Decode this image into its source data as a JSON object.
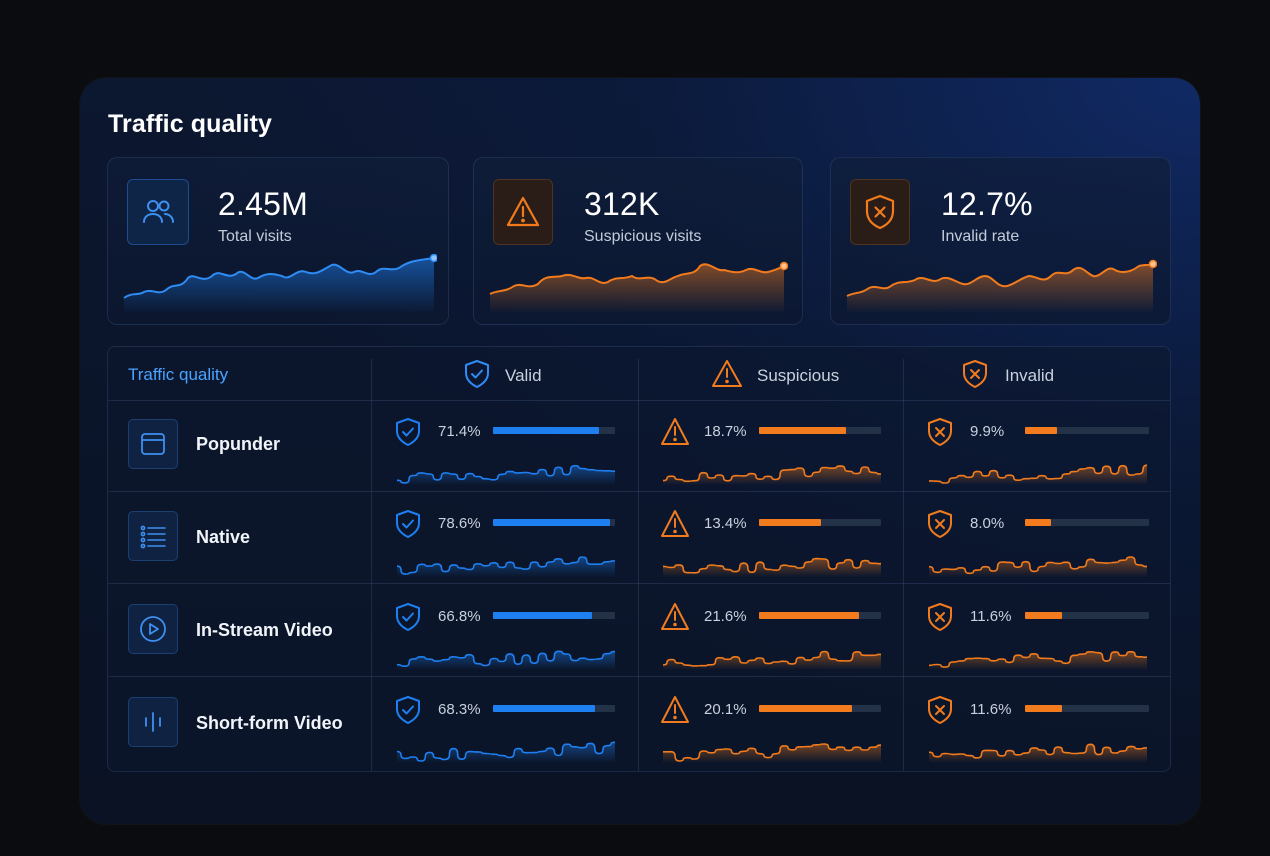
{
  "title": "Traffic quality",
  "colors": {
    "blue": "#1e7ff0",
    "orange": "#f17b1d",
    "header_blue": "#4aa3ff"
  },
  "kpis": [
    {
      "value": "2.45M",
      "label": "Total visits",
      "icon": "users-icon",
      "color": "blue"
    },
    {
      "value": "312K",
      "label": "Suspicious visits",
      "icon": "warning-triangle-icon",
      "color": "orange"
    },
    {
      "value": "12.7%",
      "label": "Invalid rate",
      "icon": "shield-x-icon",
      "color": "orange"
    }
  ],
  "table": {
    "header": {
      "first": "Traffic quality",
      "columns": [
        {
          "label": "Valid",
          "icon": "shield-check-icon"
        },
        {
          "label": "Suspicious",
          "icon": "warning-triangle-icon"
        },
        {
          "label": "Invalid",
          "icon": "shield-x-icon"
        }
      ]
    },
    "rows": [
      {
        "name": "Popunder",
        "icon": "window-icon",
        "valid": {
          "pct": "71.4%",
          "value": 71.4
        },
        "suspicious": {
          "pct": "18.7%",
          "value": 18.7
        },
        "invalid": {
          "pct": "9.9%",
          "value": 9.9
        }
      },
      {
        "name": "Native",
        "icon": "list-icon",
        "valid": {
          "pct": "78.6%",
          "value": 78.6
        },
        "suspicious": {
          "pct": "13.4%",
          "value": 13.4
        },
        "invalid": {
          "pct": "8.0%",
          "value": 8.0
        }
      },
      {
        "name": "In-Stream Video",
        "icon": "play-circle-icon",
        "valid": {
          "pct": "66.8%",
          "value": 66.8
        },
        "suspicious": {
          "pct": "21.6%",
          "value": 21.6
        },
        "invalid": {
          "pct": "11.6%",
          "value": 11.6
        }
      },
      {
        "name": "Short-form Video",
        "icon": "audio-bars-icon",
        "valid": {
          "pct": "68.3%",
          "value": 68.3
        },
        "suspicious": {
          "pct": "20.1%",
          "value": 20.1
        },
        "invalid": {
          "pct": "11.6%",
          "value": 11.6
        }
      }
    ]
  }
}
